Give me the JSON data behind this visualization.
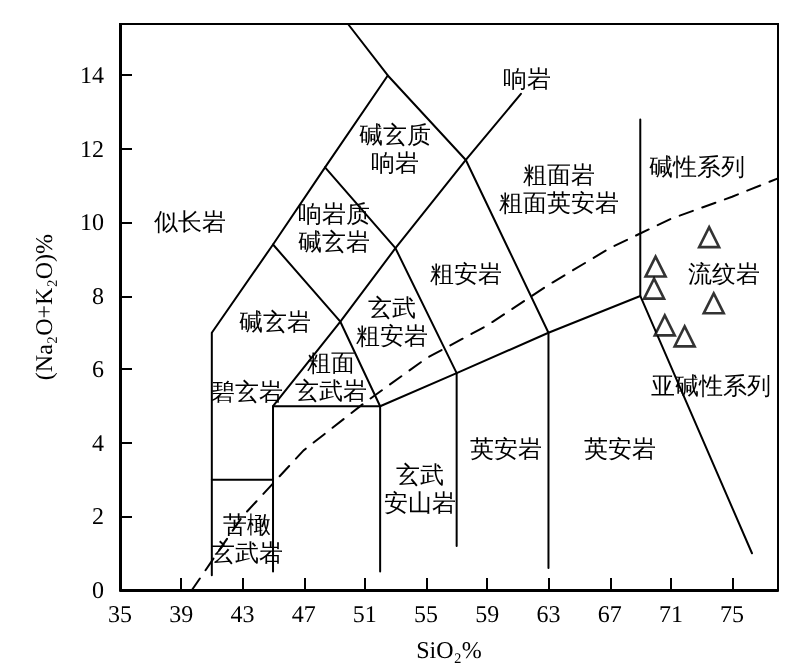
{
  "chart_data": {
    "type": "scatter",
    "xlabel": "SiO₂%",
    "ylabel": "(Na₂O+K₂O)%",
    "xlim": [
      35,
      78
    ],
    "ylim": [
      0,
      15.4
    ],
    "xticks": [
      35,
      39,
      43,
      47,
      51,
      55,
      59,
      63,
      67,
      71,
      75
    ],
    "yticks": [
      0,
      2,
      4,
      6,
      8,
      10,
      12,
      14
    ],
    "grid": false,
    "series": [
      {
        "marker": "triangle",
        "color": "#000000",
        "x": [
          73.5,
          70.0,
          69.9,
          73.8,
          70.6,
          71.9
        ],
        "values": [
          9.6,
          8.8,
          8.2,
          7.8,
          7.2,
          6.9
        ]
      },
      {
        "type": "line",
        "marker": "none",
        "line_style": "solid",
        "color": "#000000",
        "x": [
          41,
          41,
          45,
          48.4,
          52.5
        ],
        "values": [
          0.4,
          7,
          9.4,
          11.5,
          14
        ]
      },
      {
        "type": "line",
        "marker": "none",
        "line_style": "solid",
        "color": "#000000",
        "x": [
          41,
          45
        ],
        "values": [
          3,
          3
        ]
      },
      {
        "type": "line",
        "marker": "none",
        "line_style": "solid",
        "color": "#000000",
        "x": [
          45,
          45,
          52,
          52
        ],
        "values": [
          0.5,
          5,
          5,
          0.5
        ]
      },
      {
        "type": "line",
        "marker": "none",
        "line_style": "solid",
        "color": "#000000",
        "x": [
          52,
          57,
          63,
          69,
          69
        ],
        "values": [
          5,
          5.9,
          7,
          8,
          12.8
        ]
      },
      {
        "type": "line",
        "marker": "none",
        "line_style": "solid",
        "color": "#000000",
        "x": [
          57,
          57,
          53,
          48.4
        ],
        "values": [
          1.2,
          5.9,
          9.3,
          11.5
        ]
      },
      {
        "type": "line",
        "marker": "none",
        "line_style": "solid",
        "color": "#000000",
        "x": [
          49.9,
          52.5,
          57.6,
          63,
          63
        ],
        "values": [
          15.4,
          14,
          11.7,
          7,
          0.6
        ]
      },
      {
        "type": "line",
        "marker": "none",
        "line_style": "solid",
        "color": "#000000",
        "x": [
          45,
          49.4,
          52
        ],
        "values": [
          9.4,
          7.3,
          5
        ]
      },
      {
        "type": "line",
        "marker": "none",
        "line_style": "solid",
        "color": "#000000",
        "x": [
          45,
          49.4,
          53,
          57.6,
          61.2
        ],
        "values": [
          5,
          7.3,
          9.3,
          11.7,
          13.5
        ]
      },
      {
        "type": "line",
        "marker": "none",
        "line_style": "solid",
        "color": "#000000",
        "x": [
          69,
          76.3
        ],
        "values": [
          8,
          1
        ]
      },
      {
        "type": "line",
        "marker": "none",
        "line_style": "dashed",
        "color": "#000000",
        "x": [
          39.7,
          43,
          47,
          51,
          55,
          59,
          63,
          67,
          71,
          75,
          78
        ],
        "values": [
          0,
          2,
          3.8,
          5.1,
          6.3,
          7.2,
          8.3,
          9.3,
          10.1,
          10.7,
          11.2
        ]
      }
    ],
    "annotations": [
      "响岩",
      "碱玄质响岩",
      "似长岩",
      "响岩质碱玄岩",
      "粗面岩粗面英安岩",
      "碱性系列",
      "流纹岩",
      "碱玄岩",
      "玄武粗安岩",
      "粗安岩",
      "粗面玄武岩",
      "碧玄岩",
      "亚碱性系列",
      "英安岩",
      "英安岩",
      "玄武安山岩",
      "苦橄玄武岩"
    ]
  }
}
